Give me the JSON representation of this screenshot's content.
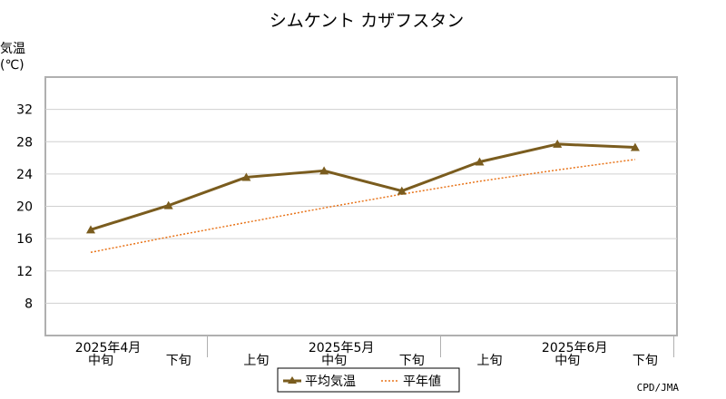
{
  "chart_data": {
    "type": "line",
    "title": "シムケント カザフスタン",
    "ylabel_line1": "気温",
    "ylabel_line2": "(℃)",
    "ylim": [
      4,
      36
    ],
    "yticks": [
      8,
      12,
      16,
      20,
      24,
      28,
      32
    ],
    "grid": true,
    "legend_position": "bottom-center",
    "categories": [
      "中旬",
      "下旬",
      "上旬",
      "中旬",
      "下旬",
      "上旬",
      "中旬",
      "下旬"
    ],
    "month_labels": [
      {
        "label": "2025年4月",
        "index": 0
      },
      {
        "label": "2025年5月",
        "index": 3
      },
      {
        "label": "2025年6月",
        "index": 6
      }
    ],
    "series": [
      {
        "name": "平均気温",
        "color": "#7a5c1e",
        "style": "solid",
        "marker": "triangle",
        "values": [
          17.1,
          20.1,
          23.6,
          24.4,
          21.9,
          25.5,
          27.7,
          27.3
        ]
      },
      {
        "name": "平年値",
        "color": "#e8741a",
        "style": "dotted",
        "values": [
          14.3,
          16.2,
          18.0,
          19.8,
          21.5,
          23.1,
          24.5,
          25.8
        ]
      }
    ],
    "source": "CPD/JMA"
  }
}
